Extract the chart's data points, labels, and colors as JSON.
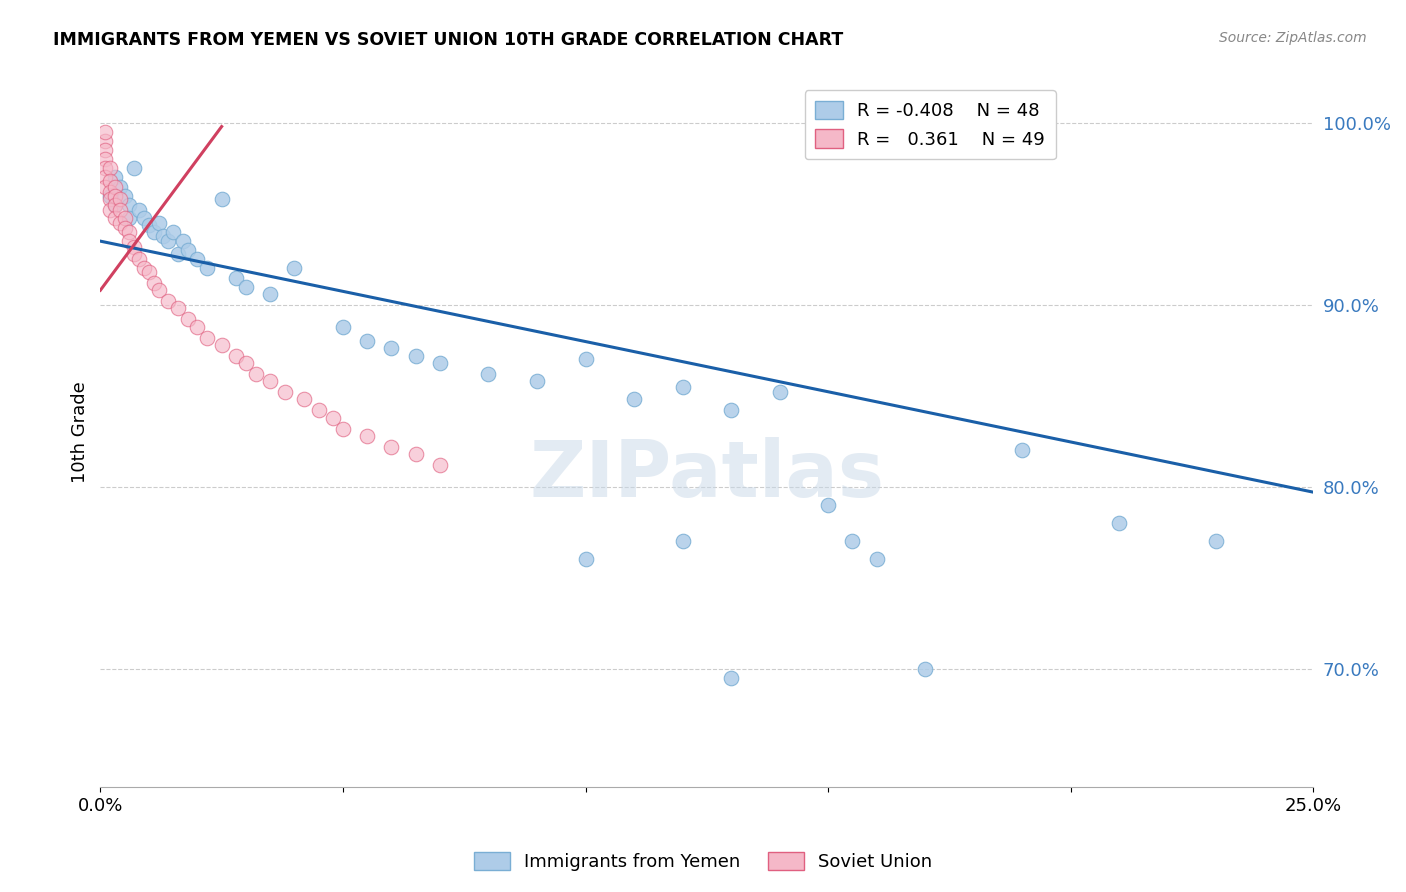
{
  "title": "IMMIGRANTS FROM YEMEN VS SOVIET UNION 10TH GRADE CORRELATION CHART",
  "source": "Source: ZipAtlas.com",
  "ylabel": "10th Grade",
  "ylim": [
    0.635,
    1.025
  ],
  "xlim": [
    0.0,
    0.25
  ],
  "yticks": [
    0.7,
    0.8,
    0.9,
    1.0
  ],
  "ytick_labels": [
    "70.0%",
    "80.0%",
    "90.0%",
    "100.0%"
  ],
  "xticks": [
    0.0,
    0.05,
    0.1,
    0.15,
    0.2,
    0.25
  ],
  "xtick_labels": [
    "0.0%",
    "",
    "",
    "",
    "",
    "25.0%"
  ],
  "legend_blue_r": "-0.408",
  "legend_blue_n": "48",
  "legend_pink_r": "0.361",
  "legend_pink_n": "49",
  "blue_color": "#aecce8",
  "blue_edge_color": "#7aaed4",
  "blue_line_color": "#1a5fa8",
  "pink_color": "#f5b8c8",
  "pink_edge_color": "#e06080",
  "pink_line_color": "#d04060",
  "watermark": "ZIPatlas",
  "blue_line_x": [
    0.0,
    0.25
  ],
  "blue_line_y": [
    0.935,
    0.797
  ],
  "pink_line_x": [
    0.0,
    0.025
  ],
  "pink_line_y": [
    0.908,
    0.998
  ],
  "blue_x": [
    0.002,
    0.003,
    0.003,
    0.004,
    0.005,
    0.006,
    0.006,
    0.007,
    0.008,
    0.009,
    0.01,
    0.011,
    0.012,
    0.013,
    0.014,
    0.015,
    0.016,
    0.017,
    0.018,
    0.02,
    0.022,
    0.025,
    0.028,
    0.03,
    0.035,
    0.04,
    0.05,
    0.055,
    0.06,
    0.065,
    0.07,
    0.08,
    0.09,
    0.1,
    0.11,
    0.12,
    0.13,
    0.14,
    0.15,
    0.16,
    0.17,
    0.19,
    0.21,
    0.23,
    0.1,
    0.12,
    0.155,
    0.13
  ],
  "blue_y": [
    0.96,
    0.955,
    0.97,
    0.965,
    0.96,
    0.955,
    0.948,
    0.975,
    0.952,
    0.948,
    0.944,
    0.94,
    0.945,
    0.938,
    0.935,
    0.94,
    0.928,
    0.935,
    0.93,
    0.925,
    0.92,
    0.958,
    0.915,
    0.91,
    0.906,
    0.92,
    0.888,
    0.88,
    0.876,
    0.872,
    0.868,
    0.862,
    0.858,
    0.87,
    0.848,
    0.855,
    0.842,
    0.852,
    0.79,
    0.76,
    0.7,
    0.82,
    0.78,
    0.77,
    0.76,
    0.77,
    0.77,
    0.695
  ],
  "pink_x": [
    0.001,
    0.001,
    0.001,
    0.001,
    0.001,
    0.001,
    0.002,
    0.002,
    0.002,
    0.002,
    0.002,
    0.003,
    0.003,
    0.003,
    0.003,
    0.004,
    0.004,
    0.004,
    0.005,
    0.005,
    0.006,
    0.006,
    0.007,
    0.007,
    0.008,
    0.009,
    0.01,
    0.011,
    0.012,
    0.014,
    0.016,
    0.018,
    0.02,
    0.022,
    0.025,
    0.028,
    0.03,
    0.032,
    0.035,
    0.038,
    0.042,
    0.045,
    0.048,
    0.05,
    0.055,
    0.06,
    0.065,
    0.07,
    0.001
  ],
  "pink_y": [
    0.99,
    0.985,
    0.98,
    0.975,
    0.97,
    0.965,
    0.975,
    0.968,
    0.962,
    0.958,
    0.952,
    0.965,
    0.96,
    0.955,
    0.948,
    0.958,
    0.952,
    0.945,
    0.948,
    0.942,
    0.94,
    0.935,
    0.932,
    0.928,
    0.925,
    0.92,
    0.918,
    0.912,
    0.908,
    0.902,
    0.898,
    0.892,
    0.888,
    0.882,
    0.878,
    0.872,
    0.868,
    0.862,
    0.858,
    0.852,
    0.848,
    0.842,
    0.838,
    0.832,
    0.828,
    0.822,
    0.818,
    0.812,
    0.995
  ]
}
